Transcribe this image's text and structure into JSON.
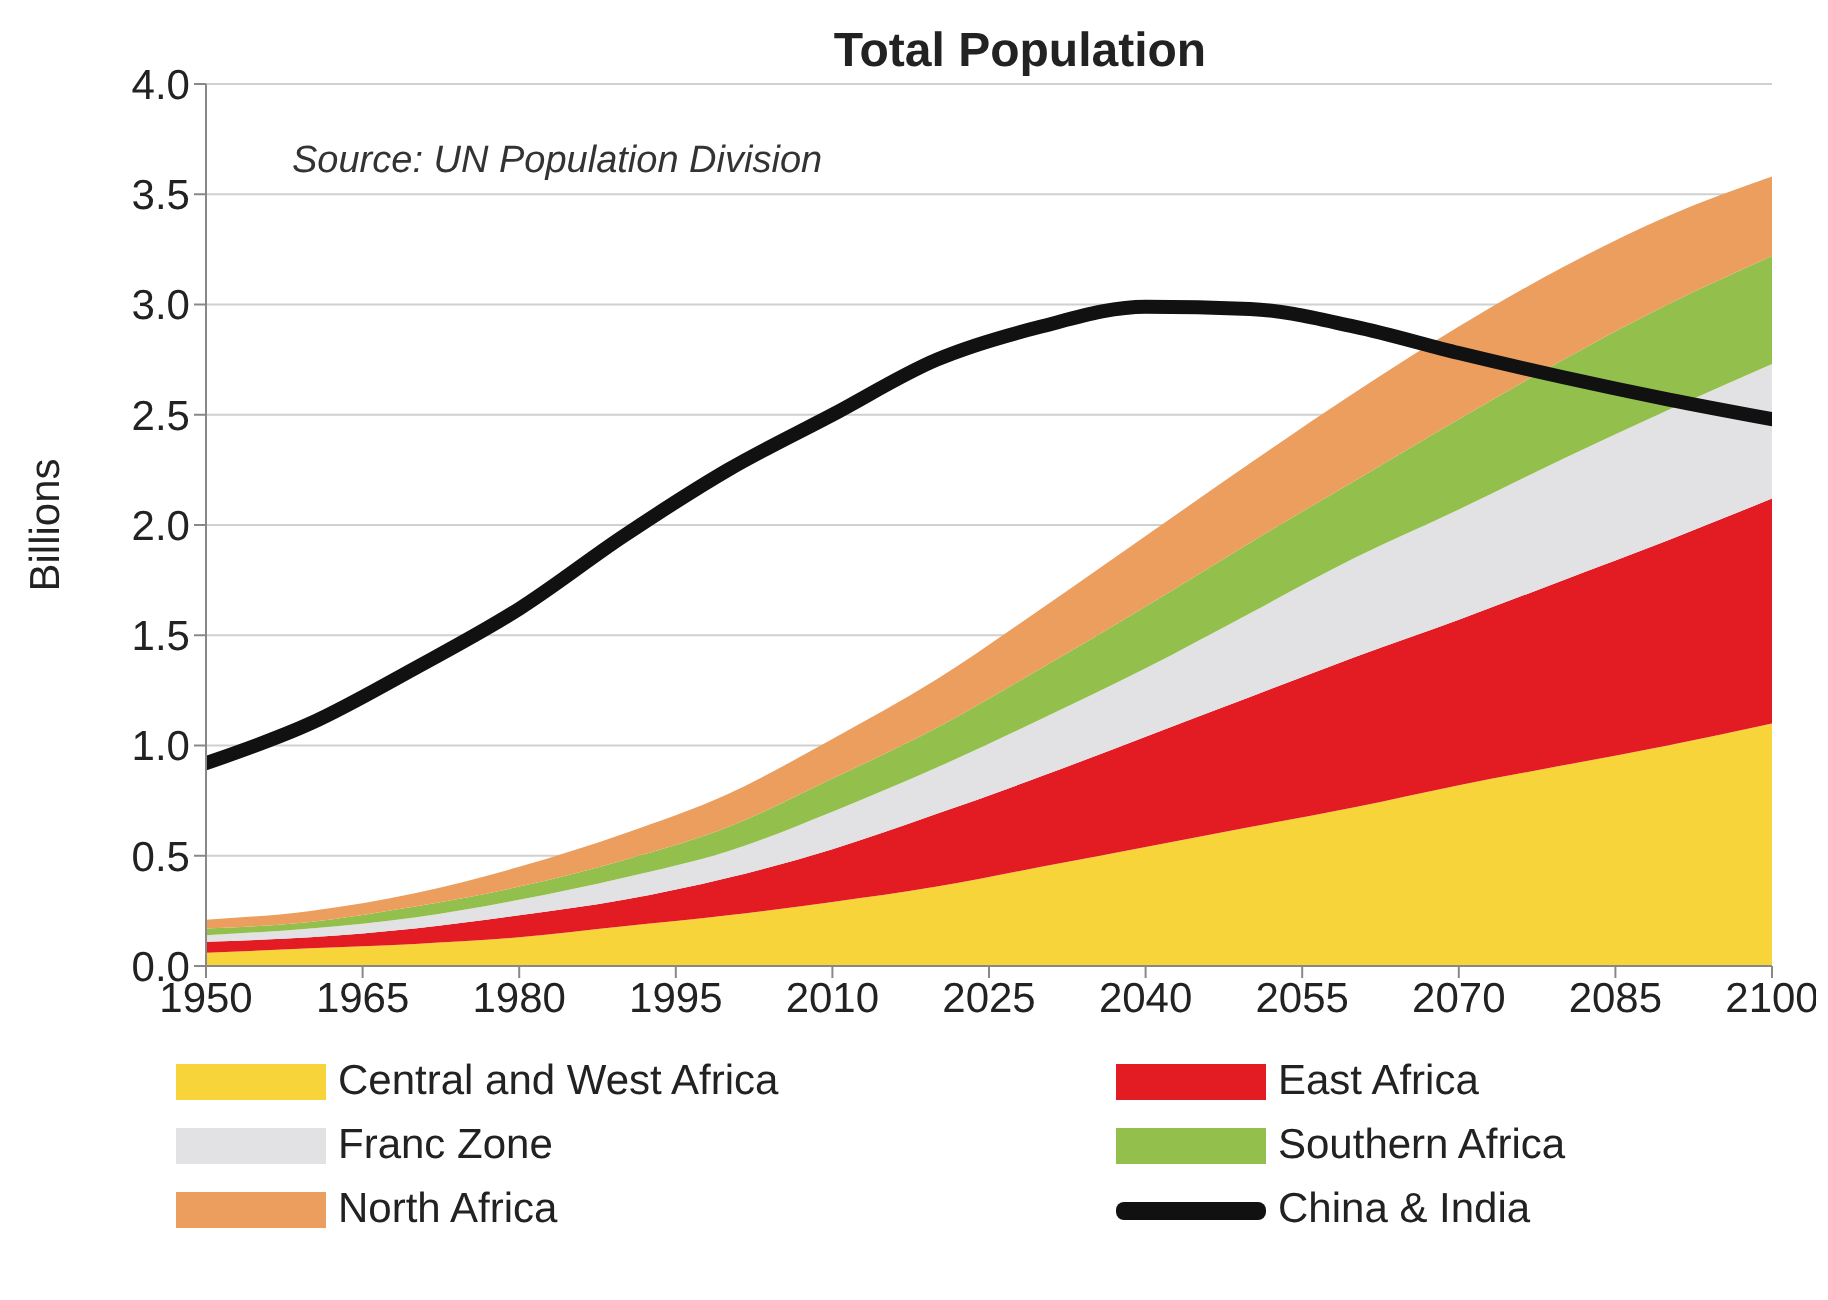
{
  "chart_data": {
    "type": "area",
    "title": "Total Population",
    "ylabel": "Billions",
    "annotations": [
      "Source: UN Population Division"
    ],
    "stacked": true,
    "grid": "y",
    "legend": "bottom",
    "x": [
      1950,
      1960,
      1970,
      1980,
      1990,
      2000,
      2010,
      2020,
      2030,
      2040,
      2050,
      2060,
      2070,
      2080,
      2090,
      2100
    ],
    "xlim": [
      1950,
      2100
    ],
    "xticks": [
      1950,
      1965,
      1980,
      1995,
      2010,
      2025,
      2040,
      2055,
      2070,
      2085,
      2100
    ],
    "ylim": [
      0,
      4
    ],
    "yticks": [
      {
        "value": 0,
        "label": "0.0"
      },
      {
        "value": 0.5,
        "label": "0.5"
      },
      {
        "value": 1,
        "label": "1.0"
      },
      {
        "value": 1.5,
        "label": "1.5"
      },
      {
        "value": 2,
        "label": "2.0"
      },
      {
        "value": 2.5,
        "label": "2.5"
      },
      {
        "value": 3,
        "label": "3.0"
      },
      {
        "value": 3.5,
        "label": "3.5"
      },
      {
        "value": 4,
        "label": "4.0"
      }
    ],
    "series": [
      {
        "name": "Central and West Africa",
        "color": "#f7d43a",
        "values": [
          0.06,
          0.08,
          0.1,
          0.13,
          0.18,
          0.23,
          0.29,
          0.36,
          0.45,
          0.54,
          0.63,
          0.72,
          0.82,
          0.91,
          1.0,
          1.1
        ]
      },
      {
        "name": "East Africa",
        "color": "#e31b23",
        "values": [
          0.05,
          0.05,
          0.07,
          0.1,
          0.12,
          0.17,
          0.24,
          0.33,
          0.41,
          0.5,
          0.59,
          0.68,
          0.75,
          0.84,
          0.93,
          1.02
        ]
      },
      {
        "name": "Franc Zone",
        "color": "#e2e2e4",
        "values": [
          0.03,
          0.04,
          0.05,
          0.07,
          0.1,
          0.12,
          0.17,
          0.21,
          0.26,
          0.31,
          0.38,
          0.45,
          0.5,
          0.55,
          0.59,
          0.61
        ]
      },
      {
        "name": "Southern Africa",
        "color": "#93c04c",
        "values": [
          0.03,
          0.03,
          0.05,
          0.06,
          0.08,
          0.11,
          0.15,
          0.18,
          0.23,
          0.28,
          0.32,
          0.35,
          0.41,
          0.45,
          0.48,
          0.49
        ]
      },
      {
        "name": "North Africa",
        "color": "#ec9e5e",
        "values": [
          0.04,
          0.05,
          0.06,
          0.09,
          0.12,
          0.15,
          0.18,
          0.22,
          0.27,
          0.32,
          0.36,
          0.4,
          0.42,
          0.42,
          0.4,
          0.36
        ]
      },
      {
        "name": "China & India",
        "type": "line",
        "color": "#111111",
        "values": [
          0.92,
          1.1,
          1.35,
          1.62,
          1.95,
          2.25,
          2.5,
          2.75,
          2.9,
          2.99,
          2.98,
          2.9,
          2.78,
          2.67,
          2.57,
          2.48
        ]
      }
    ]
  }
}
